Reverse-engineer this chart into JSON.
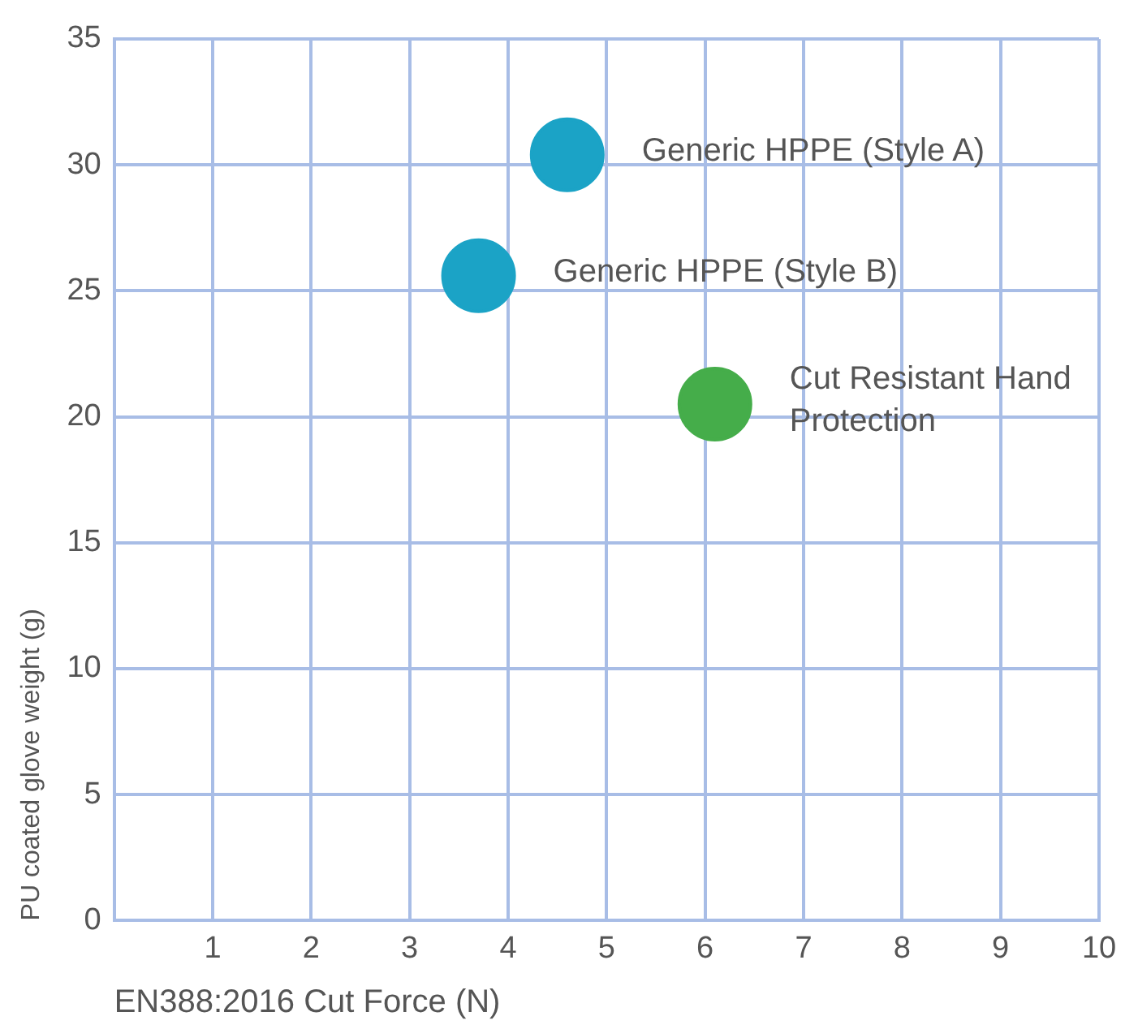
{
  "chart_data": {
    "type": "scatter",
    "xlabel": "EN388:2016 Cut Force (N)",
    "ylabel": "PU coated glove weight (g)",
    "series": [
      {
        "name": "Generic HPPE (Style A)",
        "color": "#1ba3c6",
        "x": [
          4.6
        ],
        "values": [
          30.4
        ]
      },
      {
        "name": "Generic HPPE (Style B)",
        "color": "#1ba3c6",
        "x": [
          3.7
        ],
        "values": [
          25.6
        ]
      },
      {
        "name": "Cut Resistant Hand Protection",
        "color": "#45ad4a",
        "x": [
          6.1
        ],
        "values": [
          20.5
        ]
      }
    ],
    "xlim": [
      0,
      10
    ],
    "xticks": [
      {
        "value": 0,
        "label": null
      },
      1,
      2,
      3,
      4,
      5,
      6,
      7,
      8,
      9,
      10
    ],
    "ylim": [
      0,
      35
    ],
    "yticks": [
      0,
      5,
      10,
      15,
      20,
      25,
      30,
      35
    ],
    "grid": true,
    "legend": false,
    "marker": "circle"
  }
}
